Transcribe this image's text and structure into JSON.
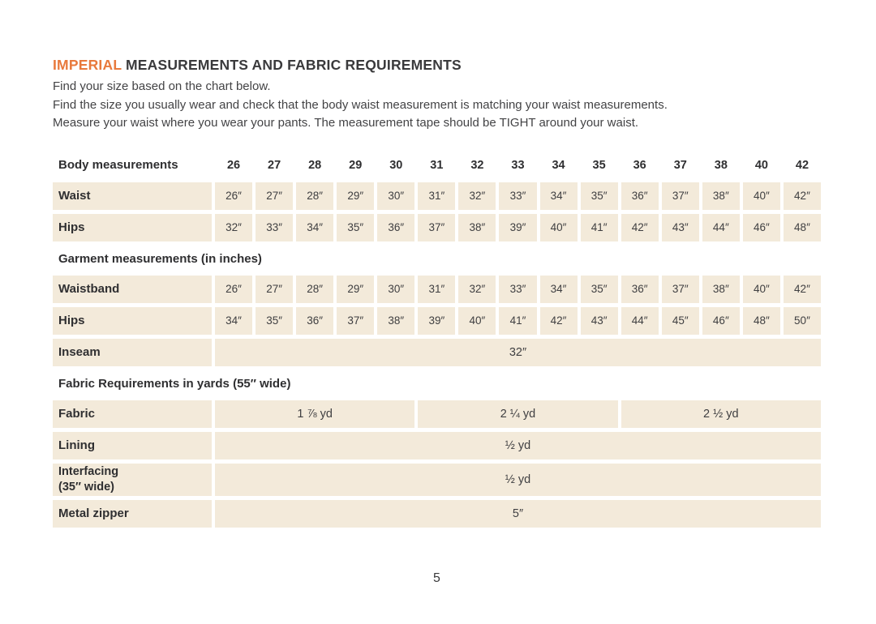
{
  "colors": {
    "accent_orange": "#E8793C",
    "cell_beige": "#F3EADA",
    "text_dark": "#3A3A3C"
  },
  "header": {
    "title_highlight": "IMPERIAL",
    "title_rest": "MEASUREMENTS AND FABRIC REQUIREMENTS",
    "intro_lines": {
      "line1": "Find your size based on the chart below.",
      "line2": "Find the size you usually wear and check that the body waist measurement is matching your waist measurements.",
      "line3": "Measure your waist where you wear your pants. The measurement tape should be TIGHT around your waist."
    }
  },
  "table": {
    "size_header_label": "Body measurements",
    "sizes": [
      "26",
      "27",
      "28",
      "29",
      "30",
      "31",
      "32",
      "33",
      "34",
      "35",
      "36",
      "37",
      "38",
      "40",
      "42"
    ],
    "body_rows": [
      {
        "label": "Waist",
        "values": [
          "26″",
          "27″",
          "28″",
          "29″",
          "30″",
          "31″",
          "32″",
          "33″",
          "34″",
          "35″",
          "36″",
          "37″",
          "38″",
          "40″",
          "42″"
        ]
      },
      {
        "label": "Hips",
        "values": [
          "32″",
          "33″",
          "34″",
          "35″",
          "36″",
          "37″",
          "38″",
          "39″",
          "40″",
          "41″",
          "42″",
          "43″",
          "44″",
          "46″",
          "48″"
        ]
      }
    ],
    "garment_section_title": "Garment measurements (in inches)",
    "garment_rows": [
      {
        "label": "Waistband",
        "values": [
          "26″",
          "27″",
          "28″",
          "29″",
          "30″",
          "31″",
          "32″",
          "33″",
          "34″",
          "35″",
          "36″",
          "37″",
          "38″",
          "40″",
          "42″"
        ]
      },
      {
        "label": "Hips",
        "values": [
          "34″",
          "35″",
          "36″",
          "37″",
          "38″",
          "39″",
          "40″",
          "41″",
          "42″",
          "43″",
          "44″",
          "45″",
          "46″",
          "48″",
          "50″"
        ]
      }
    ],
    "inseam_row": {
      "label": "Inseam",
      "value": "32″"
    },
    "fabric_section_title": "Fabric Requirements in yards (55″ wide)",
    "fabric_row": {
      "label": "Fabric",
      "values": [
        "1 ⅞ yd",
        "2 ¼ yd",
        "2 ½ yd"
      ]
    },
    "lining_row": {
      "label": "Lining",
      "value": "½ yd"
    },
    "interfacing_row": {
      "label_line1": "Interfacing",
      "label_line2": "(35″ wide)",
      "value": "½ yd"
    },
    "zipper_row": {
      "label": "Metal zipper",
      "value": "5″"
    }
  },
  "footer": {
    "page_number": "5"
  }
}
